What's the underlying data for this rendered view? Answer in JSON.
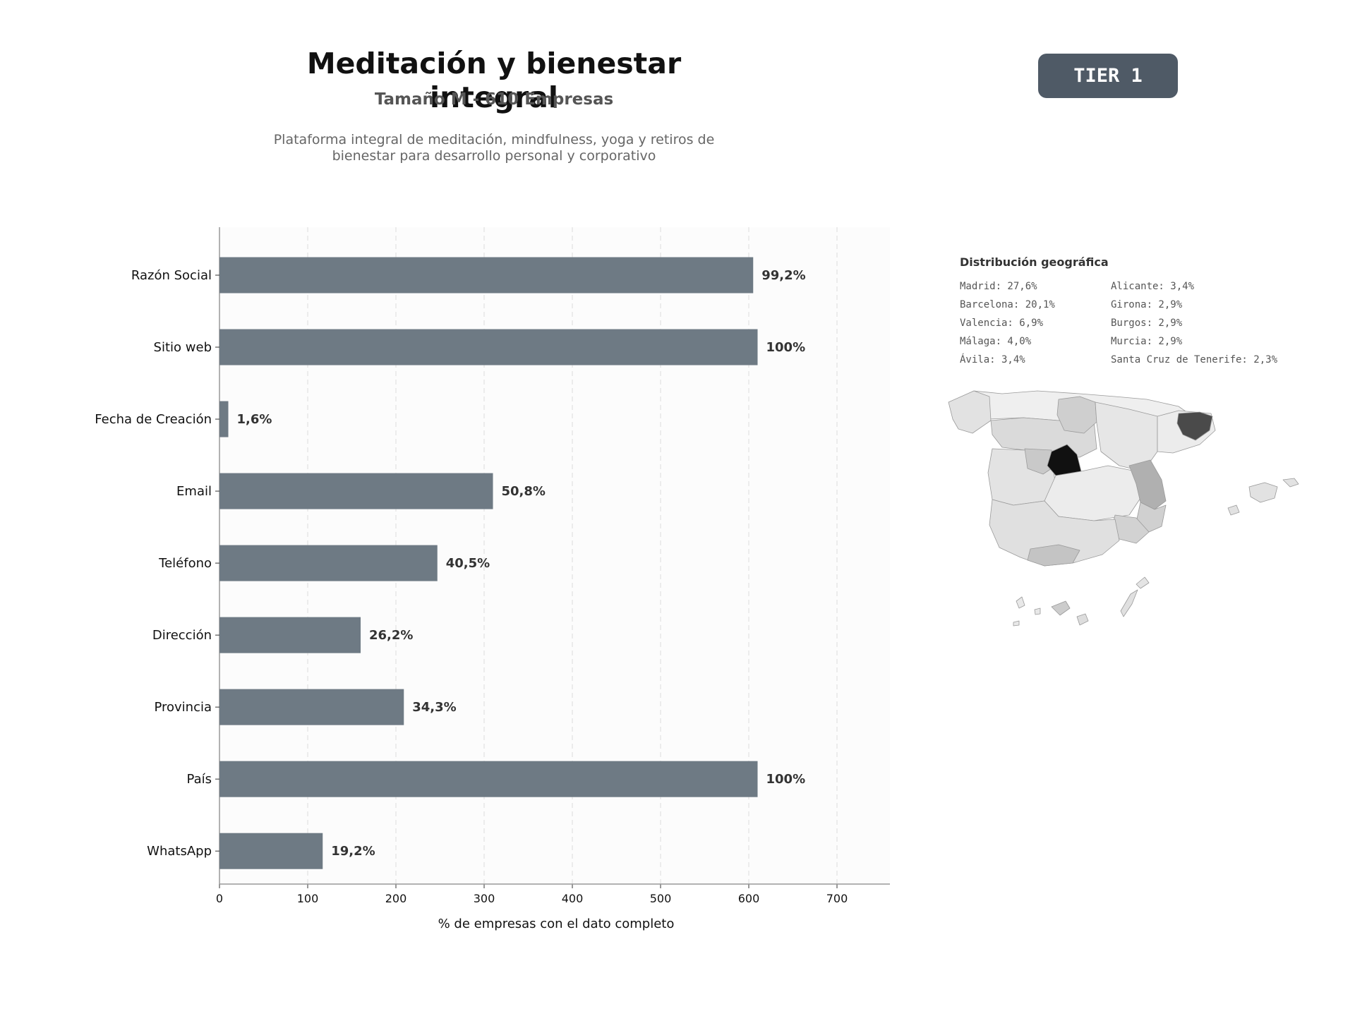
{
  "header": {
    "title": "Meditación y bienestar integral",
    "subtitle": "Tamaño M - 610 Empresas",
    "description_line1": "Plataforma integral de meditación, mindfulness, yoga y retiros de",
    "description_line2": "bienestar para desarrollo personal y corporativo",
    "tier": "TIER 1"
  },
  "chart_data": {
    "type": "bar",
    "orientation": "horizontal",
    "categories": [
      "Razón Social",
      "Sitio web",
      "Fecha de Creación",
      "Email",
      "Teléfono",
      "Dirección",
      "Provincia",
      "País",
      "WhatsApp"
    ],
    "values": [
      605,
      610,
      10,
      310,
      247,
      160,
      209,
      610,
      117
    ],
    "value_labels": [
      "99,2%",
      "100%",
      "1,6%",
      "50,8%",
      "40,5%",
      "26,2%",
      "34,3%",
      "100%",
      "19,2%"
    ],
    "xlabel": "% de empresas con el dato completo",
    "ylabel": "",
    "xlim": [
      0,
      760
    ],
    "xticks": [
      0,
      100,
      200,
      300,
      400,
      500,
      600,
      700
    ],
    "grid": "vertical dashed",
    "bar_color": "#6e7a84"
  },
  "geo": {
    "title": "Distribución geográfica",
    "items": [
      "Madrid: 27,6%",
      "Barcelona: 20,1%",
      "Valencia: 6,9%",
      "Málaga: 4,0%",
      "Ávila: 3,4%",
      "Alicante: 3,4%",
      "Girona: 2,9%",
      "Burgos: 2,9%",
      "Murcia: 2,9%",
      "Santa Cruz de Tenerife: 2,3%"
    ]
  },
  "colors": {
    "badge": "#4f5a66",
    "bar": "#6e7a84",
    "map_max": "#111111",
    "map_high": "#4a4a4a",
    "map_mid": "#b0b0b0",
    "map_low": "#d4d4d4",
    "map_min": "#efefef"
  }
}
